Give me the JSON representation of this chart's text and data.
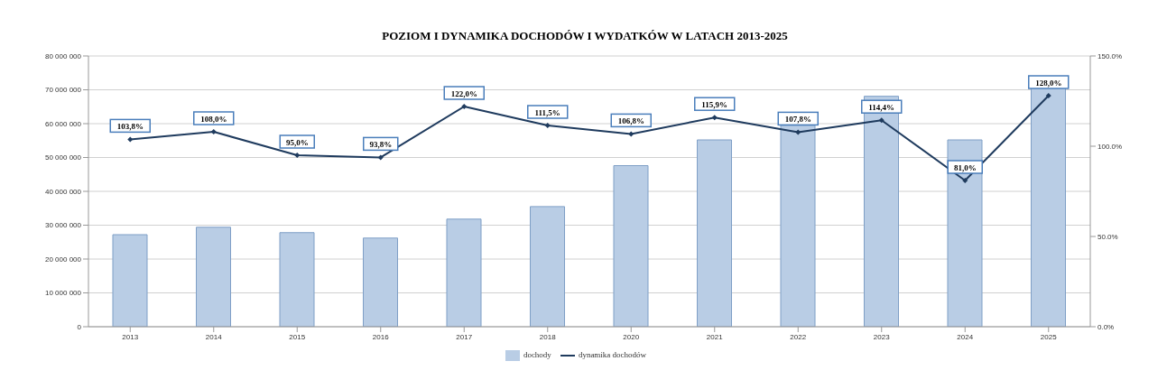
{
  "chart_data": {
    "type": "bar",
    "title": "POZIOM I DYNAMIKA DOCHODÓW I WYDATKÓW W LATACH 2013-2025",
    "categories": [
      "2013",
      "2014",
      "2015",
      "2016",
      "2017",
      "2018",
      "2020",
      "2021",
      "2022",
      "2023",
      "2024",
      "2025"
    ],
    "series": [
      {
        "name": "dochody",
        "color": "#b9cde5",
        "values": [
          27200000,
          29400000,
          27800000,
          26200000,
          31800000,
          35500000,
          47600000,
          55200000,
          59500000,
          68100000,
          55200000,
          70600000
        ]
      },
      {
        "name": "dynamika dochodów",
        "type": "line",
        "axis": "y2",
        "color": "#1f3b5e",
        "marker": "diamond",
        "values": [
          103.8,
          108.0,
          95.0,
          93.8,
          122.0,
          111.5,
          106.8,
          115.9,
          107.8,
          114.4,
          81.0,
          128.0
        ],
        "value_labels": [
          "103,8%",
          "108,0%",
          "95,0%",
          "93,8%",
          "122,0%",
          "111,5%",
          "106,8%",
          "115,9%",
          "107,8%",
          "114,4%",
          "81,0%",
          "128,0%"
        ]
      }
    ],
    "ylim": [
      0,
      80000000
    ],
    "yticks": [
      {
        "value": 0,
        "label": "0"
      },
      {
        "value": 10000000,
        "label": "10 000 000"
      },
      {
        "value": 20000000,
        "label": "20 000 000"
      },
      {
        "value": 30000000,
        "label": "30 000 000"
      },
      {
        "value": 40000000,
        "label": "40 000 000"
      },
      {
        "value": 50000000,
        "label": "50 000 000"
      },
      {
        "value": 60000000,
        "label": "60 000 000"
      },
      {
        "value": 70000000,
        "label": "70 000 000"
      },
      {
        "value": 80000000,
        "label": "80 000 000"
      }
    ],
    "y2lim": [
      0,
      150
    ],
    "y2ticks": [
      {
        "value": 0,
        "label": "0.0%"
      },
      {
        "value": 50,
        "label": "50.0%"
      },
      {
        "value": 100,
        "label": "100.0%"
      },
      {
        "value": 150,
        "label": "150.0%"
      }
    ],
    "grid": "y",
    "legend": "bottom"
  }
}
